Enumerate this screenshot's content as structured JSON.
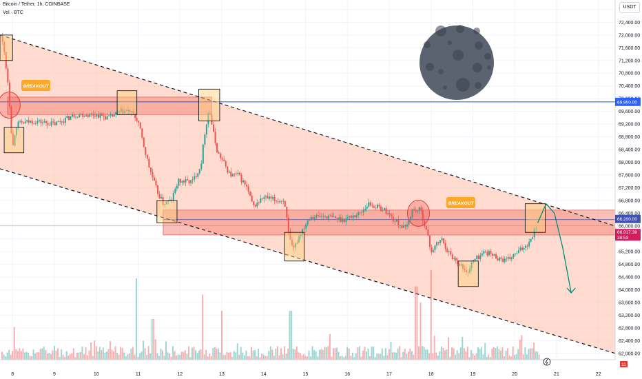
{
  "header": {
    "title": "Bitcoin / Tether, 1h, COINBASE",
    "subtitle": "Vol · BTC",
    "currency_button": "USDT"
  },
  "annotations": {
    "breakout_1": "BREAKOUT",
    "breakout_2": "BREAKOUT"
  },
  "price_tags": {
    "blue_line": "69,900.00",
    "upper": "66,200.00",
    "current": "66,017.39",
    "countdown": "38:53",
    "bottom_badge": "11"
  },
  "colors": {
    "up": "#26a69a",
    "down": "#ef5350",
    "channel_fill": "#ffc0a8",
    "zone_fill": "#f48a7e",
    "blue_line": "#2962ff",
    "box_fill": "#ffcf7a",
    "moon": "#5c6370",
    "breakout_label": "#ffa726"
  },
  "chart_data": {
    "type": "candlestick",
    "title": "Bitcoin / Tether, 1h, COINBASE",
    "y_axis": {
      "min": 61800,
      "max": 73100,
      "ticks": [
        "72,800.00",
        "72,400.00",
        "72,000.00",
        "71,600.00",
        "71,200.00",
        "70,800.00",
        "70,400.00",
        "70,000.00",
        "69,600.00",
        "69,200.00",
        "68,800.00",
        "68,400.00",
        "68,000.00",
        "67,600.00",
        "67,200.00",
        "66,800.00",
        "66,400.00",
        "66,000.00",
        "65,600.00",
        "65,200.00",
        "64,800.00",
        "64,400.00",
        "64,000.00",
        "63,600.00",
        "63,200.00",
        "62,800.00",
        "62,400.00",
        "62,000.00"
      ]
    },
    "x_axis": {
      "min": 7.7,
      "max": 22.4,
      "ticks": [
        "8",
        "9",
        "10",
        "11",
        "12",
        "13",
        "14",
        "15",
        "16",
        "17",
        "18",
        "19",
        "20",
        "21",
        "22"
      ]
    },
    "price_path": [
      [
        7.72,
        72000
      ],
      [
        7.8,
        71500
      ],
      [
        7.9,
        70400
      ],
      [
        7.95,
        69400
      ],
      [
        8.0,
        68400
      ],
      [
        8.05,
        68900
      ],
      [
        8.1,
        69200
      ],
      [
        8.5,
        69300
      ],
      [
        9.0,
        69200
      ],
      [
        9.5,
        69500
      ],
      [
        10.0,
        69500
      ],
      [
        10.3,
        69400
      ],
      [
        10.6,
        69600
      ],
      [
        10.8,
        69600
      ],
      [
        11.0,
        69300
      ],
      [
        11.1,
        68700
      ],
      [
        11.25,
        67900
      ],
      [
        11.45,
        67100
      ],
      [
        11.6,
        66700
      ],
      [
        11.8,
        66800
      ],
      [
        11.95,
        67400
      ],
      [
        12.3,
        67400
      ],
      [
        12.5,
        67900
      ],
      [
        12.6,
        69000
      ],
      [
        12.7,
        69700
      ],
      [
        12.8,
        68900
      ],
      [
        12.9,
        68300
      ],
      [
        13.0,
        68100
      ],
      [
        13.2,
        67600
      ],
      [
        13.4,
        67600
      ],
      [
        13.6,
        67200
      ],
      [
        13.75,
        66600
      ],
      [
        14.0,
        66900
      ],
      [
        14.3,
        66800
      ],
      [
        14.5,
        66800
      ],
      [
        14.6,
        65700
      ],
      [
        14.7,
        65200
      ],
      [
        14.85,
        65700
      ],
      [
        15.1,
        66300
      ],
      [
        15.5,
        66300
      ],
      [
        15.9,
        66200
      ],
      [
        16.3,
        66400
      ],
      [
        16.5,
        66700
      ],
      [
        16.9,
        66500
      ],
      [
        17.1,
        66200
      ],
      [
        17.4,
        65900
      ],
      [
        17.55,
        66500
      ],
      [
        17.75,
        66500
      ],
      [
        17.9,
        65800
      ],
      [
        18.0,
        65200
      ],
      [
        18.25,
        65600
      ],
      [
        18.45,
        65100
      ],
      [
        18.7,
        64800
      ],
      [
        18.85,
        64500
      ],
      [
        19.0,
        64900
      ],
      [
        19.3,
        65200
      ],
      [
        19.6,
        65000
      ],
      [
        19.8,
        64900
      ],
      [
        20.1,
        65200
      ],
      [
        20.35,
        65500
      ],
      [
        20.55,
        66100
      ]
    ],
    "projection": [
      [
        20.55,
        66100
      ],
      [
        20.75,
        66700
      ],
      [
        20.95,
        66400
      ],
      [
        21.15,
        65300
      ],
      [
        21.35,
        63900
      ]
    ],
    "channel": {
      "upper": [
        [
          7.7,
          72000
        ],
        [
          22.4,
          66000
        ]
      ],
      "lower": [
        [
          7.7,
          67800
        ],
        [
          22.4,
          62000
        ]
      ]
    },
    "horizontal_line": 69900,
    "zones": [
      {
        "x_start": 7.88,
        "x_end": 12.76,
        "y_low": 69500,
        "y_high": 70050
      },
      {
        "x_start": 11.6,
        "x_end": 22.4,
        "y_low": 65720,
        "y_high": 66500
      }
    ],
    "boxes": [
      {
        "x1": 7.7,
        "x2": 8.0,
        "y1": 71200,
        "y2": 72000
      },
      {
        "x1": 7.8,
        "x2": 8.27,
        "y1": 68300,
        "y2": 69100
      },
      {
        "x1": 10.5,
        "x2": 10.97,
        "y1": 69500,
        "y2": 70250
      },
      {
        "x1": 11.45,
        "x2": 11.93,
        "y1": 66100,
        "y2": 66800
      },
      {
        "x1": 12.45,
        "x2": 12.95,
        "y1": 69300,
        "y2": 70300
      },
      {
        "x1": 14.5,
        "x2": 14.97,
        "y1": 64900,
        "y2": 65800
      },
      {
        "x1": 18.65,
        "x2": 19.13,
        "y1": 64100,
        "y2": 64900
      },
      {
        "x1": 20.25,
        "x2": 20.73,
        "y1": 65800,
        "y2": 66700
      }
    ],
    "circles": [
      {
        "x": 7.92,
        "y": 69800
      },
      {
        "x": 17.7,
        "y": 66400
      }
    ],
    "volume_spikes": [
      {
        "x": 10.95,
        "v": 10
      },
      {
        "x": 11.35,
        "v": 5
      },
      {
        "x": 12.55,
        "v": 8
      },
      {
        "x": 13.0,
        "v": 6
      },
      {
        "x": 14.65,
        "v": 6
      },
      {
        "x": 17.65,
        "v": 9
      },
      {
        "x": 17.75,
        "v": 7
      },
      {
        "x": 18.0,
        "v": 11
      },
      {
        "x": 8.05,
        "v": 4
      }
    ]
  }
}
